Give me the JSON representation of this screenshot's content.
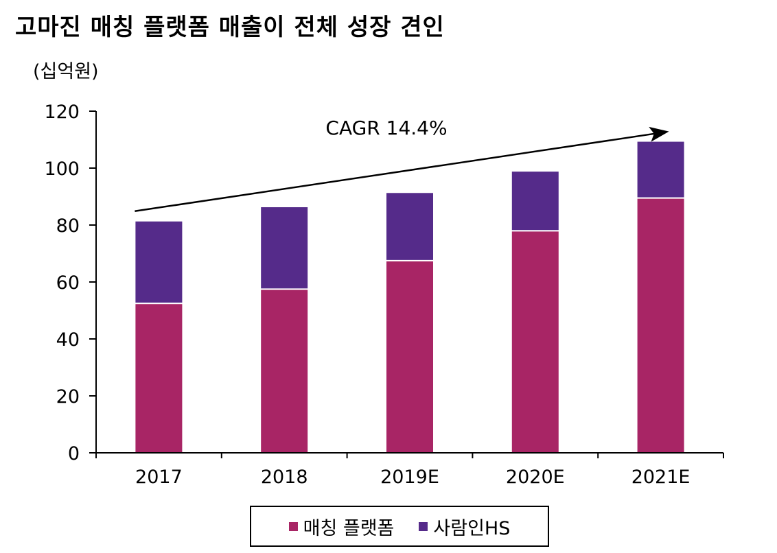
{
  "title": "고마진 매칭 플랫폼 매출이 전체 성장 견인",
  "unit_label": "(십억원)",
  "colors": {
    "matching": "#A82565",
    "saramin": "#552B8A",
    "axis": "#000000"
  },
  "chart_data": {
    "type": "bar",
    "stacked": true,
    "title": "고마진 매칭 플랫폼 매출이 전체 성장 견인",
    "ylabel": "(십억원)",
    "xlabel": "",
    "ylim": [
      0,
      120
    ],
    "yticks": [
      0,
      20,
      40,
      60,
      80,
      100,
      120
    ],
    "categories": [
      "2017",
      "2018",
      "2019E",
      "2020E",
      "2021E"
    ],
    "series": [
      {
        "name": "매칭 플랫폼",
        "values": [
          52.5,
          57.5,
          67.5,
          78,
          89.5
        ]
      },
      {
        "name": "사람인HS",
        "values": [
          29,
          29,
          24,
          21,
          20
        ]
      }
    ],
    "legend_position": "bottom",
    "annotations": [
      {
        "text": "CAGR 14.4%",
        "type": "arrow"
      }
    ]
  }
}
